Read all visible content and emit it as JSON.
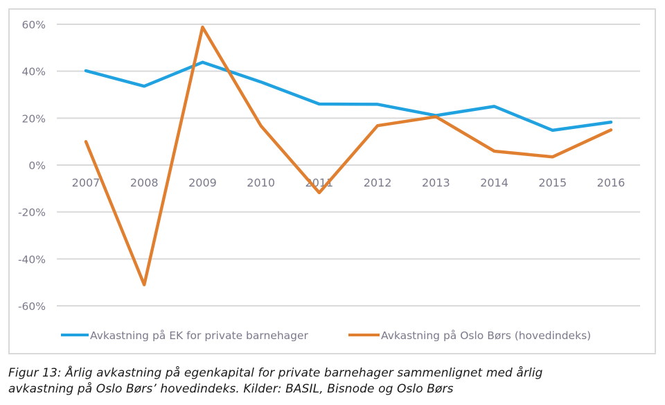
{
  "chart_data": {
    "type": "line",
    "title": "",
    "xlabel": "",
    "ylabel": "",
    "categories": [
      "2007",
      "2008",
      "2009",
      "2010",
      "2011",
      "2012",
      "2013",
      "2014",
      "2015",
      "2016"
    ],
    "ylim": [
      -60,
      60
    ],
    "yticks": [
      60,
      40,
      20,
      0,
      -20,
      -40,
      -60
    ],
    "ytick_labels": [
      "60%",
      "40%",
      "20%",
      "0%",
      "-20%",
      "-40%",
      "-60%"
    ],
    "grid": true,
    "legend_position": "bottom",
    "series": [
      {
        "name": "Avkastning på EK for private barnehager",
        "color": "#1fa2df",
        "values": [
          40.2,
          33.6,
          43.8,
          35.4,
          26.0,
          25.9,
          21.1,
          25.0,
          14.8,
          18.3
        ]
      },
      {
        "name": "Avkastning på Oslo Børs (hovedindeks)",
        "color": "#e07f2f",
        "values": [
          10.0,
          -51.0,
          58.8,
          16.7,
          -11.8,
          16.8,
          20.6,
          5.9,
          3.5,
          15.0
        ]
      }
    ]
  },
  "caption": {
    "line1": "Figur 13: Årlig avkastning på egenkapital for private barnehager sammenlignet med årlig",
    "line2": "avkastning på Oslo Børs’ hovedindeks. Kilder: BASIL, Bisnode og Oslo Børs"
  }
}
